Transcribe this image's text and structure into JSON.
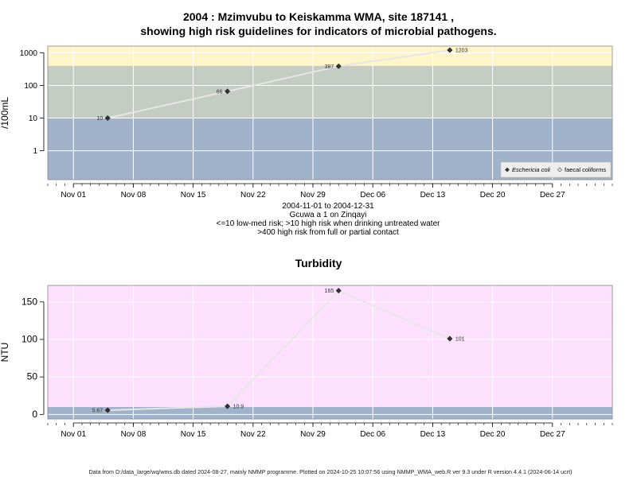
{
  "page_title": {
    "line1": "2004 : Mzimvubu to Keiskamma WMA, site 187141 ,",
    "line2": "showing high risk guidelines for indicators of microbial pathogens."
  },
  "subtitle_lines": [
    "2004-11-01 to 2004-12-31",
    "Gcuwa a 1 on Zinqayi",
    "<=10 low-med risk; >10 high risk when drinking untreated water",
    ">400 high risk from full or partial contact"
  ],
  "footer": "Data from D:/data_large/wq/wms.db dated 2024-08-27, mainly NMMP programme. Plotted on 2024-10-25 10:07:56 using NMMP_WMA_web.R ver 9.3 under R version 4.4.1 (2024-06-14 ucrt)",
  "colors": {
    "band_low": "#a1b3cb",
    "band_high_drinking": "#c3cdc4",
    "band_high_contact": "#fef5c8",
    "turbidity_background": "#fde0fd",
    "turbidity_low_band": "#a1b3cb",
    "grid": "#ffffff",
    "series_line": "#e6e6e6",
    "marker": "#333333"
  },
  "chart_data": [
    {
      "type": "line",
      "title": "",
      "xlabel": "",
      "ylabel": "/100mL",
      "y_scale": "log10",
      "ylim": [
        0.13,
        1600
      ],
      "xlim": [
        "2004-10-29",
        "2005-01-03"
      ],
      "x_ticks": [
        "Nov 01",
        "Nov 08",
        "Nov 15",
        "Nov 22",
        "Nov 29",
        "Dec 06",
        "Dec 13",
        "Dec 20",
        "Dec 27"
      ],
      "x_tick_dates": [
        "2004-11-01",
        "2004-11-08",
        "2004-11-15",
        "2004-11-22",
        "2004-11-29",
        "2004-12-06",
        "2004-12-13",
        "2004-12-20",
        "2004-12-27"
      ],
      "y_ticks": [
        1,
        10,
        100,
        1000
      ],
      "y_tick_labels": [
        "1",
        "10",
        "100",
        "1000"
      ],
      "bands": [
        {
          "from": 0.13,
          "to": 10,
          "color": "#a1b3cb"
        },
        {
          "from": 10,
          "to": 400,
          "color": "#c3cdc4"
        },
        {
          "from": 400,
          "to": 1600,
          "color": "#fef5c8"
        }
      ],
      "grid": true,
      "legend_position": "bottom-right",
      "legend": [
        {
          "label": "Eschericia coli",
          "marker": "filled-diamond",
          "italic": true
        },
        {
          "label": "faecal coliforms",
          "marker": "open-diamond",
          "italic": false
        }
      ],
      "series": [
        {
          "name": "Eschericia coli",
          "x": [
            "2004-11-05",
            "2004-11-19",
            "2004-12-02",
            "2004-12-15"
          ],
          "values": [
            10,
            66,
            387,
            1203
          ],
          "labels": [
            "10",
            "66",
            "387",
            "1203"
          ],
          "label_side": [
            "left",
            "left",
            "left",
            "right"
          ]
        }
      ]
    },
    {
      "type": "line",
      "title": "Turbidity",
      "xlabel": "",
      "ylabel": "NTU",
      "ylim": [
        -6,
        172
      ],
      "xlim": [
        "2004-10-29",
        "2005-01-03"
      ],
      "x_ticks": [
        "Nov 01",
        "Nov 08",
        "Nov 15",
        "Nov 22",
        "Nov 29",
        "Dec 06",
        "Dec 13",
        "Dec 20",
        "Dec 27"
      ],
      "x_tick_dates": [
        "2004-11-01",
        "2004-11-08",
        "2004-11-15",
        "2004-11-22",
        "2004-11-29",
        "2004-12-06",
        "2004-12-13",
        "2004-12-20",
        "2004-12-27"
      ],
      "y_ticks": [
        0,
        50,
        100,
        150
      ],
      "y_tick_labels": [
        "0",
        "50",
        "100",
        "150"
      ],
      "bands": [
        {
          "from": -6,
          "to": 10,
          "color": "#a1b3cb"
        },
        {
          "from": 10,
          "to": 172,
          "color": "#fde0fd"
        }
      ],
      "grid": true,
      "series": [
        {
          "name": "",
          "x": [
            "2004-11-05",
            "2004-11-19",
            "2004-12-02",
            "2004-12-15"
          ],
          "values": [
            5.67,
            10.9,
            165,
            101
          ],
          "labels": [
            "5.67",
            "10.9",
            "165",
            "101"
          ],
          "label_side": [
            "left",
            "right",
            "left",
            "right"
          ]
        }
      ]
    }
  ]
}
